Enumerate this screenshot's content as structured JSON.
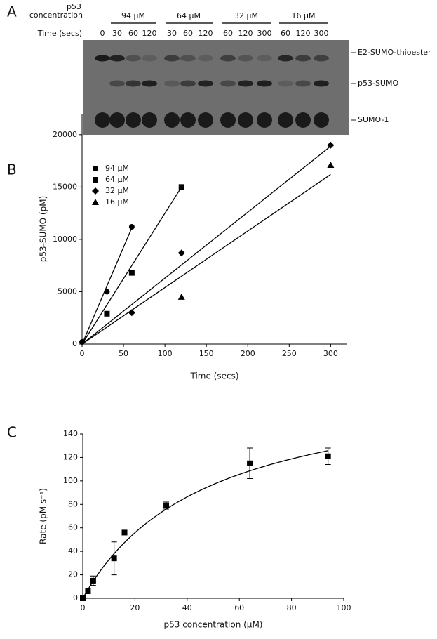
{
  "panel_labels": [
    "A",
    "B",
    "C"
  ],
  "gel": {
    "concentration_label": [
      "p53",
      "concentration"
    ],
    "time_label": "Time (secs)",
    "control_time": "0",
    "groups": [
      {
        "name": "94 μM",
        "times": [
          "30",
          "60",
          "120"
        ]
      },
      {
        "name": "64 μM",
        "times": [
          "30",
          "60",
          "120"
        ]
      },
      {
        "name": "32 μM",
        "times": [
          "60",
          "120",
          "300"
        ]
      },
      {
        "name": "16 μM",
        "times": [
          "60",
          "120",
          "300"
        ]
      }
    ],
    "bands": [
      "E2-SUMO-thioester",
      "p53-SUMO",
      "SUMO-1"
    ]
  },
  "chart_data": [
    {
      "type": "scatter",
      "xlabel": "Time (secs)",
      "ylabel": "p53-SUMO (pM)",
      "xlim": [
        0,
        320
      ],
      "ylim": [
        0,
        22000
      ],
      "xticks": [
        0,
        50,
        100,
        150,
        200,
        250,
        300
      ],
      "yticks": [
        0,
        5000,
        10000,
        15000,
        20000
      ],
      "legend": "upper left",
      "series": [
        {
          "name": "94 μM",
          "marker": "circle",
          "color": "#000000",
          "x": [
            0,
            30,
            60
          ],
          "values": [
            200,
            5000,
            11200
          ],
          "fit_slope": 185
        },
        {
          "name": "64 μM",
          "marker": "square",
          "color": "#000000",
          "x": [
            30,
            60,
            120
          ],
          "values": [
            2900,
            6800,
            15000
          ],
          "fit_slope": 125
        },
        {
          "name": "32 μM",
          "marker": "diamond",
          "color": "#000000",
          "x": [
            60,
            120,
            300
          ],
          "values": [
            3000,
            8700,
            19000
          ],
          "fit_slope": 63
        },
        {
          "name": "16 μM",
          "marker": "triangle",
          "color": "#000000",
          "x": [
            120,
            300
          ],
          "values": [
            4500,
            17100
          ],
          "fit_slope": 54
        }
      ]
    },
    {
      "type": "errorbar",
      "xlabel": "p53 concentration (μM)",
      "ylabel": "Rate (pM s⁻¹)",
      "xlim": [
        0,
        100
      ],
      "ylim": [
        0,
        140
      ],
      "xticks": [
        0,
        20,
        40,
        60,
        80,
        100
      ],
      "yticks": [
        0,
        20,
        40,
        60,
        80,
        100,
        120,
        140
      ],
      "marker": "square",
      "color": "#000000",
      "x": [
        0,
        2,
        4,
        12,
        16,
        32,
        64,
        94
      ],
      "values": [
        0,
        6,
        15,
        34,
        56,
        79,
        115,
        121
      ],
      "errors": [
        0,
        2,
        4,
        14,
        2,
        3,
        13,
        7
      ],
      "curve": {
        "vmax": 190,
        "km": 48
      }
    }
  ]
}
